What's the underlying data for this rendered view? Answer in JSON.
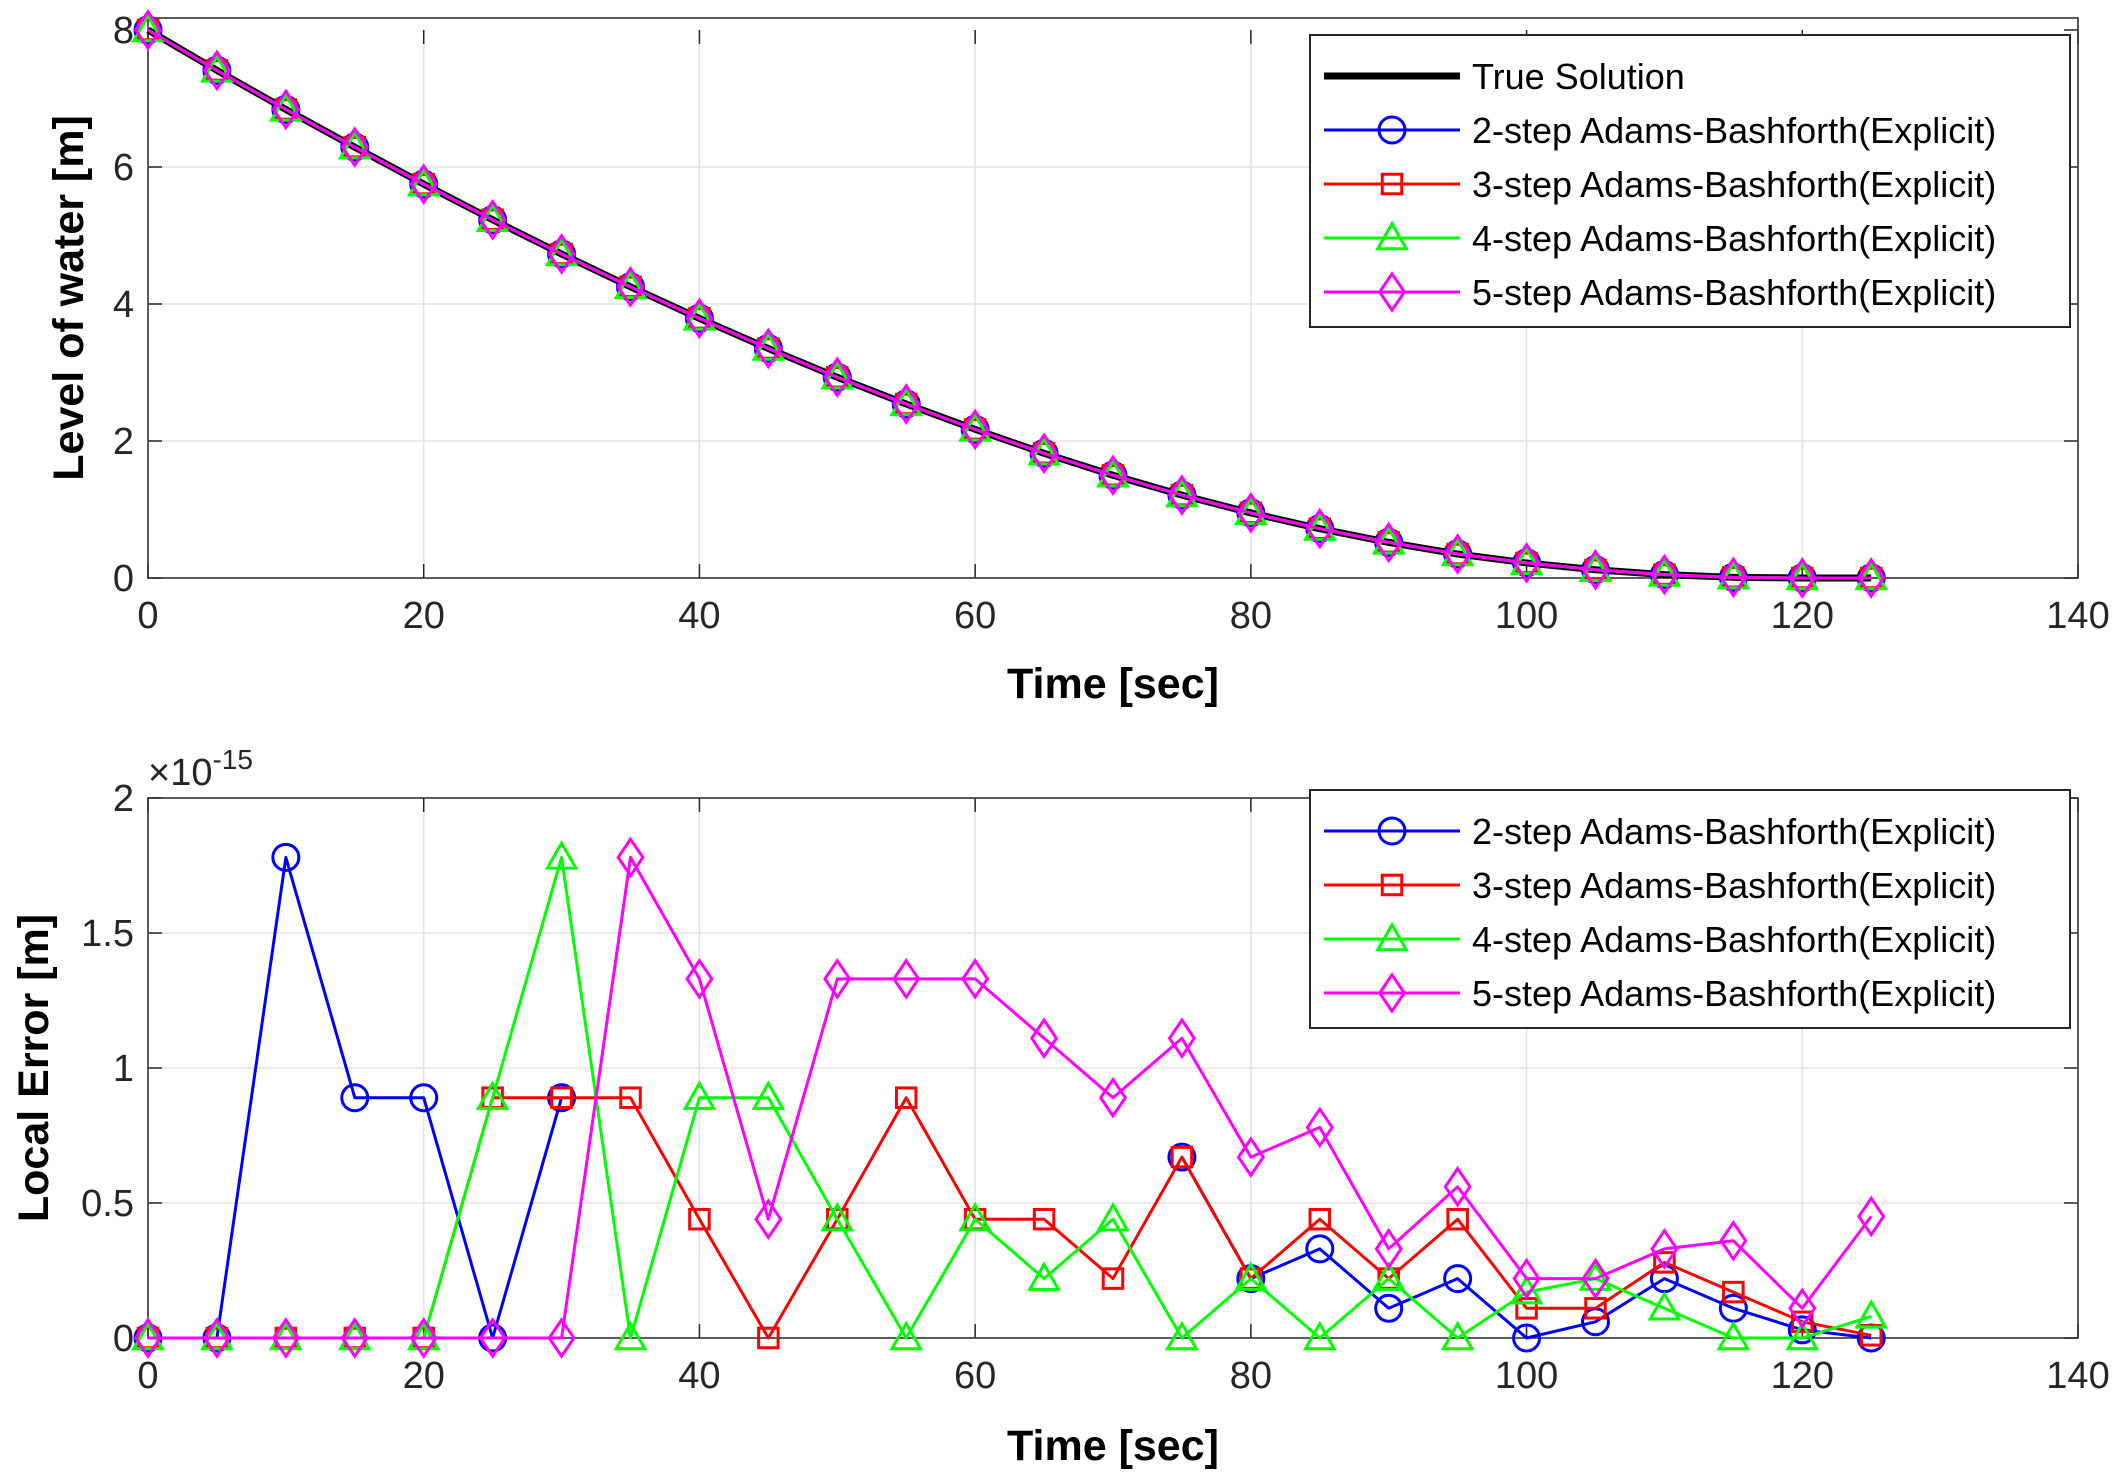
{
  "chart_data": [
    {
      "type": "line",
      "title": "",
      "xlabel": "Time [sec]",
      "ylabel": "Level of water [m]",
      "xlim": [
        0,
        140
      ],
      "ylim": [
        0,
        8
      ],
      "xticks": [
        0,
        20,
        40,
        60,
        80,
        100,
        120,
        140
      ],
      "yticks": [
        0,
        2,
        4,
        6,
        8
      ],
      "xtick_labels": [
        "0",
        "20",
        "40",
        "60",
        "80",
        "100",
        "120",
        "140"
      ],
      "ytick_labels": [
        "0",
        "2",
        "4",
        "6",
        "8"
      ],
      "grid": true,
      "legend_position": "top-right",
      "x": [
        0,
        5,
        10,
        15,
        20,
        25,
        30,
        35,
        40,
        45,
        50,
        55,
        60,
        65,
        70,
        75,
        80,
        85,
        90,
        95,
        100,
        105,
        110,
        115,
        120,
        125
      ],
      "series": [
        {
          "name": "True Solution",
          "color": "#000000",
          "marker": "none",
          "values": [
            8.0,
            7.41,
            6.84,
            6.29,
            5.75,
            5.23,
            4.73,
            4.25,
            3.79,
            3.35,
            2.93,
            2.54,
            2.17,
            1.82,
            1.5,
            1.21,
            0.95,
            0.72,
            0.52,
            0.35,
            0.22,
            0.12,
            0.05,
            0.01,
            0.0,
            0.0
          ]
        },
        {
          "name": "2-step Adams-Bashforth(Explicit)",
          "color": "#0000ff",
          "marker": "circle",
          "values": [
            8.0,
            7.41,
            6.84,
            6.29,
            5.75,
            5.23,
            4.73,
            4.25,
            3.79,
            3.35,
            2.93,
            2.54,
            2.17,
            1.82,
            1.5,
            1.21,
            0.95,
            0.72,
            0.52,
            0.35,
            0.22,
            0.12,
            0.05,
            0.01,
            0.0,
            0.0
          ]
        },
        {
          "name": "3-step Adams-Bashforth(Explicit)",
          "color": "#ff0000",
          "marker": "square",
          "values": [
            8.0,
            7.41,
            6.84,
            6.29,
            5.75,
            5.23,
            4.73,
            4.25,
            3.79,
            3.35,
            2.93,
            2.54,
            2.17,
            1.82,
            1.5,
            1.21,
            0.95,
            0.72,
            0.52,
            0.35,
            0.22,
            0.12,
            0.05,
            0.01,
            0.0,
            0.0
          ]
        },
        {
          "name": "4-step Adams-Bashforth(Explicit)",
          "color": "#00ff00",
          "marker": "triangle",
          "values": [
            8.0,
            7.41,
            6.84,
            6.29,
            5.75,
            5.23,
            4.73,
            4.25,
            3.79,
            3.35,
            2.93,
            2.54,
            2.17,
            1.82,
            1.5,
            1.21,
            0.95,
            0.72,
            0.52,
            0.35,
            0.22,
            0.12,
            0.05,
            0.01,
            0.0,
            0.0
          ]
        },
        {
          "name": "5-step Adams-Bashforth(Explicit)",
          "color": "#ff00ff",
          "marker": "diamond",
          "values": [
            8.0,
            7.41,
            6.84,
            6.29,
            5.75,
            5.23,
            4.73,
            4.25,
            3.79,
            3.35,
            2.93,
            2.54,
            2.17,
            1.82,
            1.5,
            1.21,
            0.95,
            0.72,
            0.52,
            0.35,
            0.22,
            0.12,
            0.05,
            0.01,
            0.0,
            0.0
          ]
        }
      ]
    },
    {
      "type": "line",
      "title": "",
      "xlabel": "Time [sec]",
      "ylabel": "Local Error [m]",
      "y_exponent_base": "×10",
      "y_exponent_power": "-15",
      "xlim": [
        0,
        140
      ],
      "ylim": [
        0,
        2
      ],
      "xticks": [
        0,
        20,
        40,
        60,
        80,
        100,
        120,
        140
      ],
      "yticks": [
        0,
        0.5,
        1,
        1.5,
        2
      ],
      "xtick_labels": [
        "0",
        "20",
        "40",
        "60",
        "80",
        "100",
        "120",
        "140"
      ],
      "ytick_labels": [
        "0",
        "0.5",
        "1",
        "1.5",
        "2"
      ],
      "grid": true,
      "legend_position": "top-right",
      "x": [
        0,
        5,
        10,
        15,
        20,
        25,
        30,
        35,
        40,
        45,
        50,
        55,
        60,
        65,
        70,
        75,
        80,
        85,
        90,
        95,
        100,
        105,
        110,
        115,
        120,
        125
      ],
      "series": [
        {
          "name": "2-step Adams-Bashforth(Explicit)",
          "color": "#0000ff",
          "marker": "circle",
          "values": [
            0,
            0,
            1.78,
            0.89,
            0.89,
            0,
            0.89,
            null,
            null,
            null,
            null,
            null,
            null,
            null,
            null,
            0.67,
            0.22,
            0.33,
            0.11,
            0.22,
            0,
            0.06,
            0.22,
            0.11,
            0.03,
            0
          ]
        },
        {
          "name": "3-step Adams-Bashforth(Explicit)",
          "color": "#ff0000",
          "marker": "square",
          "values": [
            0,
            0,
            0,
            0,
            0,
            0.89,
            0.89,
            0.89,
            0.44,
            0,
            0.44,
            0.89,
            0.44,
            0.44,
            0.22,
            0.67,
            0.22,
            0.44,
            0.22,
            0.44,
            0.11,
            0.11,
            0.28,
            0.17,
            0.06,
            0.01
          ]
        },
        {
          "name": "4-step Adams-Bashforth(Explicit)",
          "color": "#00ff00",
          "marker": "triangle",
          "values": [
            0,
            0,
            0,
            0,
            0,
            0.89,
            1.78,
            0,
            0.89,
            0.89,
            0.44,
            0,
            0.44,
            0.22,
            0.44,
            0,
            0.22,
            0,
            0.22,
            0,
            0.17,
            0.22,
            0.11,
            0,
            0,
            0.08
          ]
        },
        {
          "name": "5-step Adams-Bashforth(Explicit)",
          "color": "#ff00ff",
          "marker": "diamond",
          "values": [
            0,
            0,
            0,
            0,
            0,
            0,
            0,
            1.78,
            1.33,
            0.44,
            1.33,
            1.33,
            1.33,
            1.11,
            0.89,
            1.11,
            0.67,
            0.78,
            0.33,
            0.56,
            0.22,
            0.22,
            0.33,
            0.36,
            0.11,
            0.45
          ]
        }
      ]
    }
  ]
}
